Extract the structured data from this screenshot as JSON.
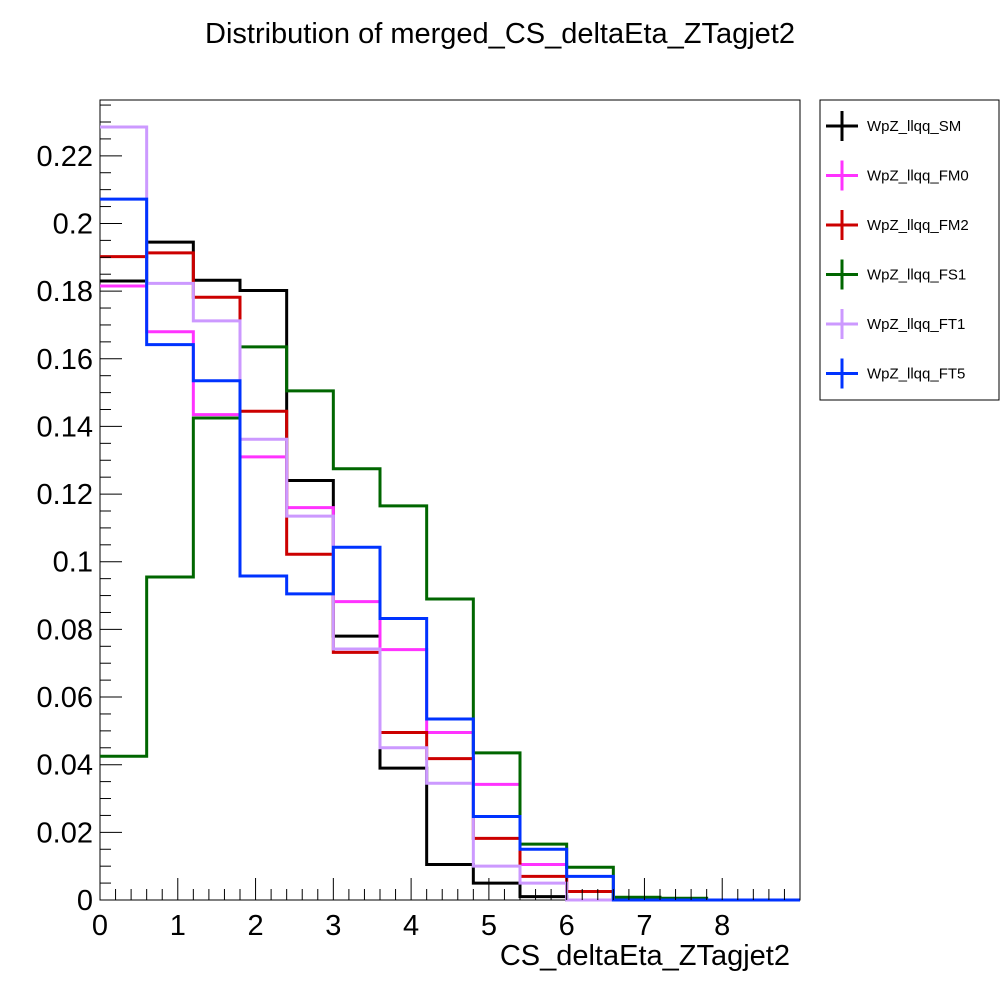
{
  "chart_data": {
    "type": "step",
    "title": "Distribution of merged_CS_deltaEta_ZTagjet2",
    "xlabel": "CS_deltaEta_ZTagjet2",
    "ylabel": "",
    "xlim": [
      0,
      9
    ],
    "ylim": [
      0,
      0.2365
    ],
    "x_ticks": [
      0,
      1,
      2,
      3,
      4,
      5,
      6,
      7,
      8
    ],
    "x_tick_labels": [
      "0",
      "1",
      "2",
      "3",
      "4",
      "5",
      "6",
      "7",
      "8"
    ],
    "y_ticks": [
      0,
      0.02,
      0.04,
      0.06,
      0.08,
      0.1,
      0.12,
      0.14,
      0.16,
      0.18,
      0.2,
      0.22
    ],
    "y_tick_labels": [
      "0",
      "0.02",
      "0.04",
      "0.06",
      "0.08",
      "0.1",
      "0.12",
      "0.14",
      "0.16",
      "0.18",
      "0.2",
      "0.22"
    ],
    "bin_edges": [
      0,
      0.6,
      1.2,
      1.8,
      2.4,
      3.0,
      3.6,
      4.2,
      4.8,
      5.4,
      6.0,
      6.6,
      7.2,
      7.8,
      8.4,
      9.0
    ],
    "legend_position": "top-right",
    "series": [
      {
        "name": "WpZ_llqq_SM",
        "color": "#000000",
        "values": [
          0.183,
          0.1945,
          0.1832,
          0.1802,
          0.124,
          0.078,
          0.039,
          0.0105,
          0.005,
          0.001,
          0.0,
          0.0,
          0.0,
          0.0,
          0.0
        ]
      },
      {
        "name": "WpZ_llqq_FM0",
        "color": "#ff33ff",
        "values": [
          0.1815,
          0.168,
          0.1435,
          0.131,
          0.116,
          0.0882,
          0.074,
          0.0495,
          0.0342,
          0.0105,
          0.0025,
          0.0,
          0.0,
          0.0,
          0.0
        ]
      },
      {
        "name": "WpZ_llqq_FM2",
        "color": "#cc0000",
        "values": [
          0.1902,
          0.1913,
          0.1782,
          0.1445,
          0.1022,
          0.0732,
          0.0495,
          0.0418,
          0.0182,
          0.007,
          0.0025,
          0.0005,
          0.0,
          0.0,
          0.0
        ]
      },
      {
        "name": "WpZ_llqq_FS1",
        "color": "#006600",
        "values": [
          0.0425,
          0.0955,
          0.1425,
          0.1635,
          0.1505,
          0.1275,
          0.1165,
          0.089,
          0.0435,
          0.0165,
          0.0097,
          0.0008,
          0.0005,
          0.0,
          0.0
        ]
      },
      {
        "name": "WpZ_llqq_FT1",
        "color": "#cc99ff",
        "values": [
          0.2285,
          0.1823,
          0.1712,
          0.1362,
          0.1135,
          0.0742,
          0.045,
          0.0345,
          0.01,
          0.005,
          0.0,
          0.0,
          0.0,
          0.0,
          0.0
        ]
      },
      {
        "name": "WpZ_llqq_FT5",
        "color": "#0033ff",
        "values": [
          0.2072,
          0.1642,
          0.1535,
          0.0958,
          0.0905,
          0.1043,
          0.0832,
          0.0535,
          0.0247,
          0.015,
          0.007,
          0.0,
          0.0,
          0.0,
          0.0
        ]
      }
    ]
  }
}
